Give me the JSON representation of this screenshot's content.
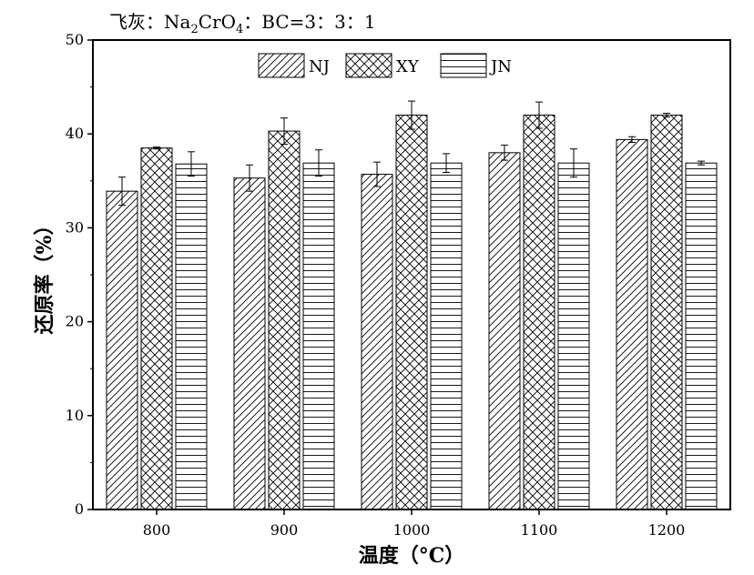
{
  "title_parts": {
    "prefix": "飞灰：Na",
    "sub1": "2",
    "mid": "CrO",
    "sub2": "4",
    "suffix": "：BC=3：3：1"
  },
  "chart_data": {
    "type": "bar",
    "title": "飞灰：Na2CrO4：BC=3：3：1",
    "xlabel": "温度（°C）",
    "ylabel": "还原率（%）",
    "ylim": [
      0,
      50
    ],
    "yticks": [
      0,
      10,
      20,
      30,
      40,
      50
    ],
    "categories": [
      "800",
      "900",
      "1000",
      "1100",
      "1200"
    ],
    "legend_position": "top-center",
    "grid": false,
    "series": [
      {
        "name": "NJ",
        "pattern": "diagonal-lines",
        "values": [
          33.9,
          35.3,
          35.7,
          38.0,
          39.4
        ],
        "errors": [
          1.5,
          1.4,
          1.3,
          0.8,
          0.3
        ]
      },
      {
        "name": "XY",
        "pattern": "crosshatch",
        "values": [
          38.5,
          40.3,
          42.0,
          42.0,
          42.0
        ],
        "errors": [
          0.1,
          1.4,
          1.5,
          1.4,
          0.2
        ]
      },
      {
        "name": "JN",
        "pattern": "horizontal-lines",
        "values": [
          36.8,
          36.9,
          36.9,
          36.9,
          36.9
        ],
        "errors": [
          1.3,
          1.4,
          1.0,
          1.5,
          0.2
        ]
      }
    ]
  }
}
